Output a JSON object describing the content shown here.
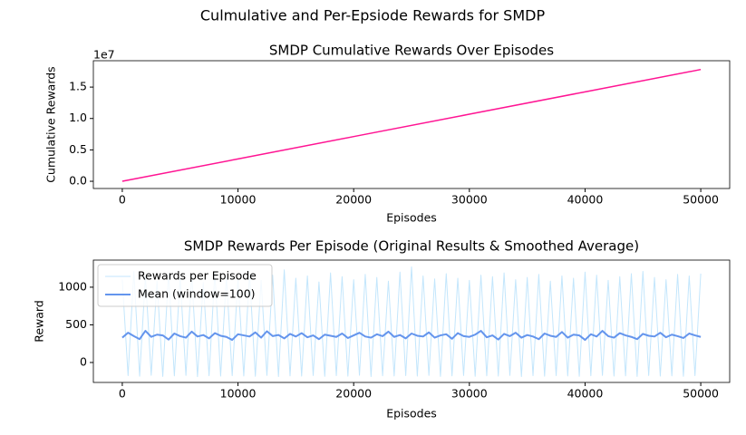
{
  "title": "Culmulative and Per-Epsiode Rewards for SMDP",
  "chart_data": [
    {
      "type": "line",
      "title": "SMDP Cumulative Rewards Over Episodes",
      "x_label": "Episodes",
      "y_label": "Cumulative Rewards",
      "y_offset_label": "1e7",
      "x": [
        0,
        10000,
        20000,
        30000,
        40000,
        50000
      ],
      "series": [
        {
          "name": "Cumulative Rewards",
          "color": "#ff1493",
          "width": 1.5,
          "values": [
            0,
            3560000,
            7120000,
            10680000,
            14240000,
            17800000
          ]
        }
      ],
      "xlim": [
        -2500,
        52500
      ],
      "xticks": [
        0,
        10000,
        20000,
        30000,
        40000,
        50000
      ],
      "ylim": [
        -1150000,
        19200000
      ],
      "yticks": [
        {
          "value": 0,
          "label": "0.0"
        },
        {
          "value": 5000000,
          "label": "0.5"
        },
        {
          "value": 10000000,
          "label": "1.0"
        },
        {
          "value": 15000000,
          "label": "1.5"
        }
      ],
      "legend": false
    },
    {
      "type": "line",
      "title": "SMDP Rewards Per Episode (Original Results & Smoothed Average)",
      "x_label": "Episodes",
      "y_label": "Reward",
      "x": [
        0,
        500,
        1000,
        1500,
        2000,
        2500,
        3000,
        3500,
        4000,
        4500,
        5000,
        5500,
        6000,
        6500,
        7000,
        7500,
        8000,
        8500,
        9000,
        9500,
        10000,
        10500,
        11000,
        11500,
        12000,
        12500,
        13000,
        13500,
        14000,
        14500,
        15000,
        15500,
        16000,
        16500,
        17000,
        17500,
        18000,
        18500,
        19000,
        19500,
        20000,
        20500,
        21000,
        21500,
        22000,
        22500,
        23000,
        23500,
        24000,
        24500,
        25000,
        25500,
        26000,
        26500,
        27000,
        27500,
        28000,
        28500,
        29000,
        29500,
        30000,
        30500,
        31000,
        31500,
        32000,
        32500,
        33000,
        33500,
        34000,
        34500,
        35000,
        35500,
        36000,
        36500,
        37000,
        37500,
        38000,
        38500,
        39000,
        39500,
        40000,
        40500,
        41000,
        41500,
        42000,
        42500,
        43000,
        43500,
        44000,
        44500,
        45000,
        45500,
        46000,
        46500,
        47000,
        47500,
        48000,
        48500,
        49000,
        49500,
        50000
      ],
      "series": [
        {
          "name": "Rewards per Episode",
          "color": "#c3e6fc",
          "width": 1,
          "values": [
            1100,
            -175,
            1210,
            -182,
            1150,
            -170,
            1080,
            -185,
            1190,
            -178,
            1130,
            -172,
            1170,
            -188,
            1060,
            -176,
            1200,
            -181,
            1140,
            -174,
            1110,
            -179,
            1180,
            -183,
            1090,
            -171,
            1160,
            -186,
            1230,
            -177,
            1120,
            -180,
            1150,
            -173,
            1070,
            -184,
            1190,
            -175,
            1140,
            -182,
            1100,
            -170,
            1170,
            -187,
            1130,
            -176,
            1080,
            -179,
            1200,
            -174,
            1270,
            -181,
            1150,
            -172,
            1110,
            -185,
            1180,
            -178,
            1120,
            -173,
            1090,
            -183,
            1160,
            -177,
            1140,
            -180,
            1190,
            -171,
            1100,
            -186,
            1130,
            -175,
            1170,
            -182,
            1080,
            -174,
            1150,
            -179,
            1120,
            -184,
            1200,
            -176,
            1160,
            -172,
            1090,
            -181,
            1140,
            -178,
            1180,
            -185,
            1210,
            -173,
            1130,
            -180,
            1100,
            -177,
            1170,
            -183,
            1150,
            -175,
            1180
          ]
        },
        {
          "name": "Mean (window=100)",
          "color": "#6495ed",
          "width": 2,
          "values": [
            330,
            395,
            350,
            310,
            420,
            340,
            370,
            360,
            305,
            385,
            350,
            330,
            410,
            345,
            365,
            320,
            390,
            355,
            340,
            300,
            375,
            360,
            345,
            400,
            330,
            415,
            350,
            365,
            320,
            380,
            345,
            390,
            335,
            360,
            310,
            370,
            355,
            340,
            385,
            325,
            360,
            395,
            345,
            330,
            375,
            350,
            410,
            340,
            365,
            320,
            385,
            355,
            345,
            400,
            330,
            360,
            375,
            315,
            390,
            350,
            340,
            370,
            420,
            335,
            360,
            305,
            380,
            350,
            395,
            330,
            365,
            345,
            310,
            385,
            355,
            340,
            405,
            330,
            370,
            360,
            300,
            375,
            345,
            420,
            350,
            330,
            390,
            360,
            340,
            310,
            380,
            355,
            345,
            395,
            335,
            370,
            350,
            325,
            385,
            360,
            340
          ]
        }
      ],
      "xlim": [
        -2500,
        52500
      ],
      "xticks": [
        0,
        10000,
        20000,
        30000,
        40000,
        50000
      ],
      "ylim": [
        -265,
        1360
      ],
      "yticks": [
        0,
        500,
        1000
      ],
      "legend": "upper left"
    }
  ]
}
